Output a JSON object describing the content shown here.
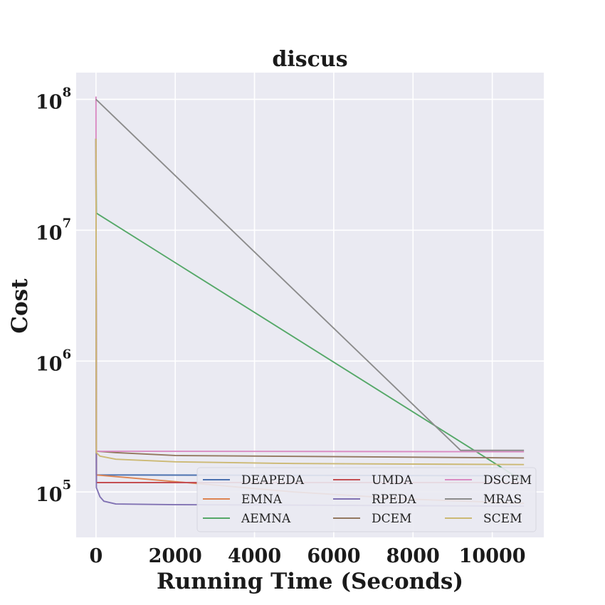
{
  "chart_data": {
    "type": "line",
    "title": "discus",
    "xlabel": "Running Time (Seconds)",
    "ylabel": "Cost",
    "xlim": [
      -500,
      11300
    ],
    "ylim": [
      45000,
      160000000
    ],
    "yscale": "log",
    "grid": true,
    "legend_position": "lower-right",
    "legend_columns": 3,
    "x_ticks": [
      {
        "value": 0,
        "label": "0"
      },
      {
        "value": 2000,
        "label": "2000"
      },
      {
        "value": 4000,
        "label": "4000"
      },
      {
        "value": 6000,
        "label": "6000"
      },
      {
        "value": 8000,
        "label": "8000"
      },
      {
        "value": 10000,
        "label": "10000"
      }
    ],
    "y_ticks": [
      {
        "value": 100000,
        "base": "10",
        "exp": "5"
      },
      {
        "value": 1000000,
        "base": "10",
        "exp": "6"
      },
      {
        "value": 10000000,
        "base": "10",
        "exp": "7"
      },
      {
        "value": 100000000,
        "base": "10",
        "exp": "8"
      }
    ],
    "series": [
      {
        "name": "DEAPEDA",
        "color": "#4c72b0",
        "points": [
          [
            0,
            50000000
          ],
          [
            10,
            135000
          ],
          [
            10800,
            133000
          ]
        ]
      },
      {
        "name": "EMNA",
        "color": "#dd8452",
        "points": [
          [
            0,
            50000000
          ],
          [
            10,
            135000
          ],
          [
            2000,
            120000
          ],
          [
            5000,
            100000
          ],
          [
            8000,
            88000
          ],
          [
            10800,
            82000
          ]
        ]
      },
      {
        "name": "AEMNA",
        "color": "#55a868",
        "points": [
          [
            0,
            50000000
          ],
          [
            10,
            13500000
          ],
          [
            10800,
            120000
          ]
        ]
      },
      {
        "name": "UMDA",
        "color": "#c44e52",
        "points": [
          [
            0,
            50000000
          ],
          [
            10,
            118000
          ],
          [
            10800,
            118000
          ]
        ]
      },
      {
        "name": "RPEDA",
        "color": "#8172b3",
        "points": [
          [
            0,
            50000000
          ],
          [
            10,
            108000
          ],
          [
            100,
            92000
          ],
          [
            200,
            85000
          ],
          [
            500,
            81000
          ],
          [
            2000,
            80000
          ],
          [
            10800,
            78000
          ]
        ]
      },
      {
        "name": "DCEM",
        "color": "#937860",
        "points": [
          [
            0,
            50000000
          ],
          [
            10,
            205000
          ],
          [
            500,
            200000
          ],
          [
            2000,
            190000
          ],
          [
            10800,
            182000
          ]
        ]
      },
      {
        "name": "DSCEM",
        "color": "#da8bc3",
        "points": [
          [
            0,
            105000000
          ],
          [
            10,
            205000
          ],
          [
            10800,
            203000
          ]
        ]
      },
      {
        "name": "MRAS",
        "color": "#8c8c8c",
        "points": [
          [
            0,
            100000000
          ],
          [
            9200,
            208000
          ],
          [
            10800,
            208000
          ]
        ]
      },
      {
        "name": "SCEM",
        "color": "#ccb974",
        "points": [
          [
            0,
            50000000
          ],
          [
            10,
            200000
          ],
          [
            100,
            188000
          ],
          [
            500,
            178000
          ],
          [
            2000,
            170000
          ],
          [
            5000,
            165000
          ],
          [
            10800,
            162000
          ]
        ]
      }
    ]
  }
}
